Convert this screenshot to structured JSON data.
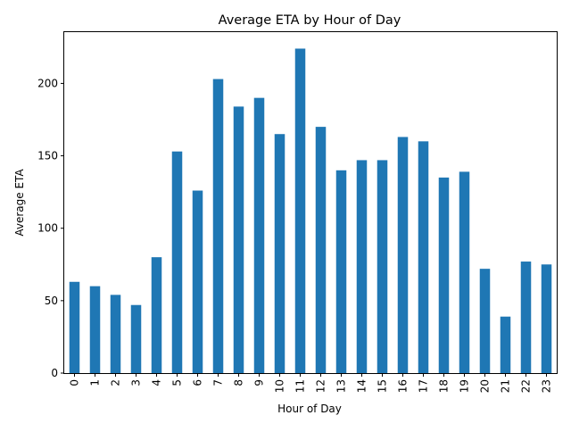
{
  "chart_data": {
    "type": "bar",
    "title": "Average ETA by Hour of Day",
    "xlabel": "Hour of Day",
    "ylabel": "Average ETA",
    "categories": [
      "0",
      "1",
      "2",
      "3",
      "4",
      "5",
      "6",
      "7",
      "8",
      "9",
      "10",
      "11",
      "12",
      "13",
      "14",
      "15",
      "16",
      "17",
      "18",
      "19",
      "20",
      "21",
      "22",
      "23"
    ],
    "values": [
      63,
      60,
      54,
      47,
      80,
      153,
      126,
      203,
      184,
      190,
      165,
      224,
      170,
      140,
      147,
      147,
      163,
      160,
      135,
      139,
      72,
      39,
      77,
      75
    ],
    "yticks": [
      0,
      50,
      100,
      150,
      200
    ],
    "ylim": [
      0,
      236
    ],
    "grid": false,
    "legend": "none",
    "bar_color": "#1f77b4"
  }
}
